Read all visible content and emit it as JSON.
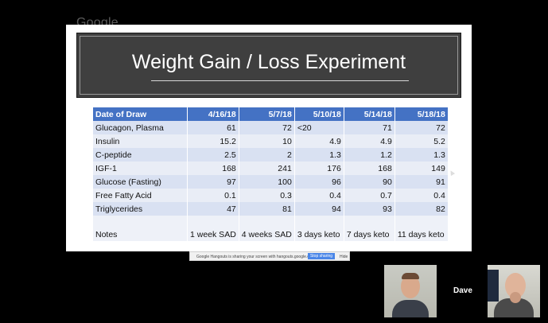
{
  "hangout": {
    "logo": "Google",
    "share_message": "Google Hangouts is sharing your screen with hangouts.google.com",
    "stop_label": "Stop sharing",
    "hide_label": "Hide",
    "participant_name": "Dave"
  },
  "slide": {
    "title": "Weight Gain / Loss Experiment",
    "header": [
      "Date of Draw",
      "4/16/18",
      "5/7/18",
      "5/10/18",
      "5/14/18",
      "5/18/18"
    ],
    "rows": [
      {
        "label": "Glucagon, Plasma",
        "values": [
          "61",
          "72",
          "<20",
          "71",
          "72"
        ]
      },
      {
        "label": "Insulin",
        "values": [
          "15.2",
          "10",
          "4.9",
          "4.9",
          "5.2"
        ]
      },
      {
        "label": "C-peptide",
        "values": [
          "2.5",
          "2",
          "1.3",
          "1.2",
          "1.3"
        ]
      },
      {
        "label": "IGF-1",
        "values": [
          "168",
          "241",
          "176",
          "168",
          "149"
        ]
      },
      {
        "label": "Glucose (Fasting)",
        "values": [
          "97",
          "100",
          "96",
          "90",
          "91"
        ]
      },
      {
        "label": "Free Fatty Acid",
        "values": [
          "0.1",
          "0.3",
          "0.4",
          "0.7",
          "0.4"
        ]
      },
      {
        "label": "Triglycerides",
        "values": [
          "47",
          "81",
          "94",
          "93",
          "82"
        ]
      }
    ],
    "notes": {
      "label": "Notes",
      "values": [
        "1 week SAD",
        "4 weeks SAD",
        "3 days keto",
        "7 days keto",
        "11 days keto"
      ]
    }
  }
}
